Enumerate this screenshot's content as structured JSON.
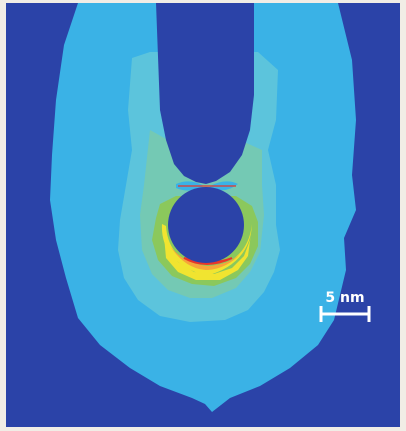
{
  "scale_bar": {
    "label": "5 nm"
  },
  "colors": {
    "background": "#2b43a8",
    "field_outer": "#3ab2e6",
    "field_mid": "#5cc4dc",
    "field_inner": "#74c9b4",
    "field_green": "#8bc85c",
    "field_yellow": "#f1e430",
    "field_orange": "#f6a53a",
    "field_red": "#e8352b",
    "tip": "#2b43a8",
    "particle": "#2b43a8",
    "frame": "#f1ede6"
  }
}
